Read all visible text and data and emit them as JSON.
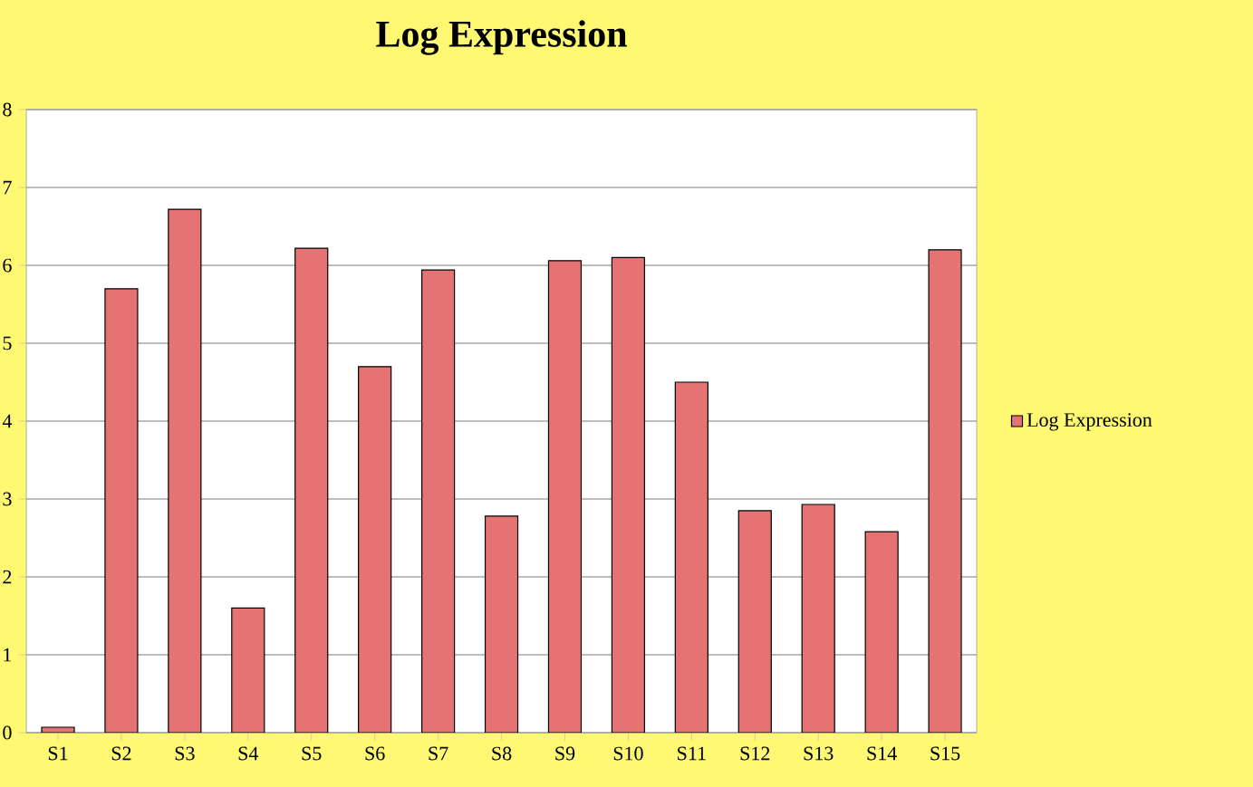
{
  "chart_data": {
    "type": "bar",
    "title": "Log Expression",
    "categories": [
      "S1",
      "S2",
      "S3",
      "S4",
      "S5",
      "S6",
      "S7",
      "S8",
      "S9",
      "S10",
      "S11",
      "S12",
      "S13",
      "S14",
      "S15"
    ],
    "series": [
      {
        "name": "Log Expression",
        "color": "#e57373",
        "values": [
          0.07,
          5.7,
          6.72,
          1.6,
          6.22,
          4.7,
          5.94,
          2.78,
          6.06,
          6.1,
          4.5,
          2.85,
          2.93,
          2.58,
          6.2
        ]
      }
    ],
    "ylim": [
      0,
      8
    ],
    "yticks": [
      0,
      1,
      2,
      3,
      4,
      5,
      6,
      7,
      8
    ],
    "grid": "y",
    "legend": "right"
  }
}
